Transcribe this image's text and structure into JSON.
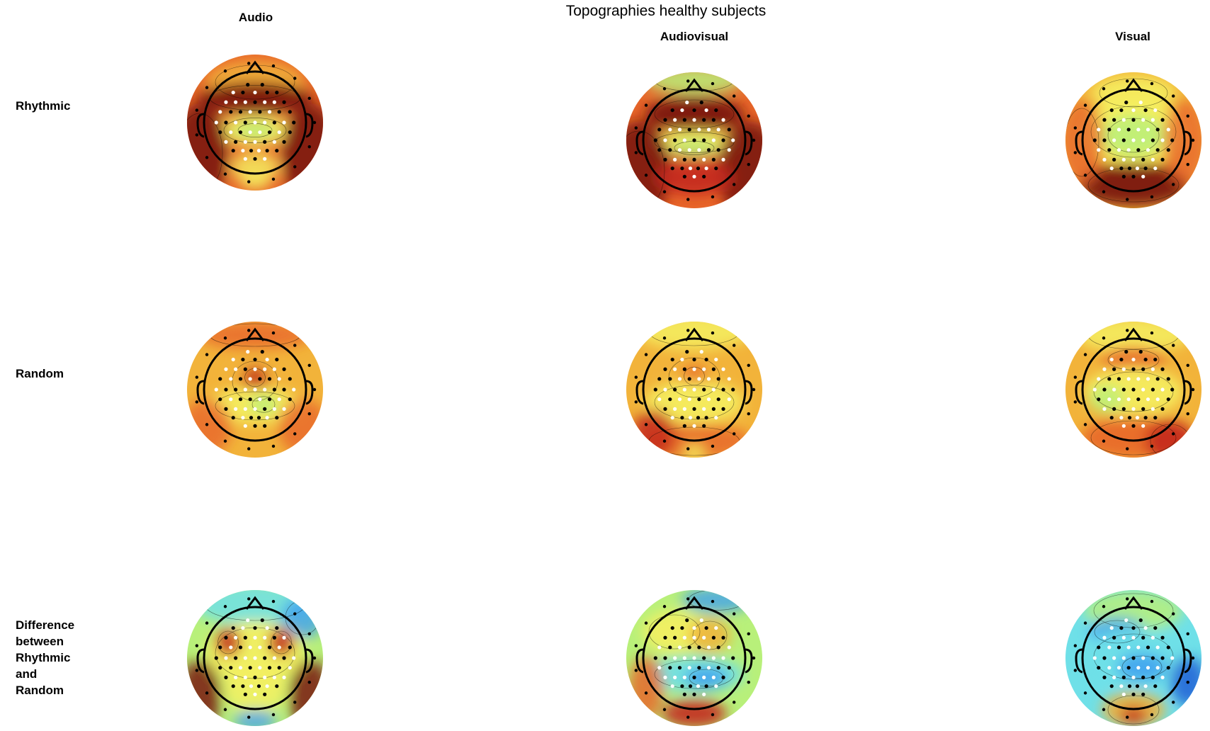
{
  "figure": {
    "title": "Topographies healthy subjects",
    "columns": [
      "Audio",
      "Audiovisual",
      "Visual"
    ],
    "rows": [
      {
        "label_lines": [
          "Rhythmic"
        ]
      },
      {
        "label_lines": [
          "Random"
        ]
      },
      {
        "label_lines": [
          "Difference",
          "between",
          "Rhythmic",
          "and",
          "Random"
        ]
      }
    ]
  },
  "colors": {
    "colormap": [
      "#1f5fd6",
      "#3fa0f0",
      "#6fe0e8",
      "#b8f07a",
      "#f5f060",
      "#f2b33a",
      "#e8672a",
      "#c42a1c",
      "#7a1410"
    ],
    "head_outline": "#000000",
    "significant_electrode": "#ffffff",
    "nonsignificant_electrode": "#000000"
  }
}
